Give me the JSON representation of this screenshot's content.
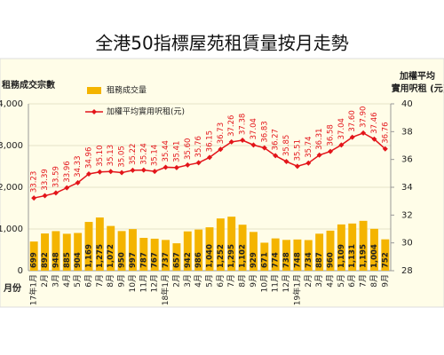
{
  "chart_data": {
    "type": "bar_line",
    "title": "全港50指標屋苑租賃量按月走勢",
    "y_label": "租務成交宗數",
    "y2_label": [
      "加權平均",
      "實用呎租 (元)"
    ],
    "x_label": "月份",
    "categories": [
      "17年1月",
      "2月",
      "3月",
      "4月",
      "5月",
      "6月",
      "7月",
      "8月",
      "9月",
      "10月",
      "11月",
      "12月",
      "18年1月",
      "2月",
      "3月",
      "4月",
      "5月",
      "6月",
      "7月",
      "8月",
      "9月",
      "10月",
      "11月",
      "12月",
      "19年1月",
      "2月",
      "3月",
      "4月",
      "5月",
      "6月",
      "7月",
      "8月",
      "9月"
    ],
    "series": [
      {
        "name": "租務成交量",
        "type": "bar",
        "color": "#f4b400",
        "values": [
          699,
          892,
          948,
          885,
          904,
          1169,
          1275,
          1072,
          950,
          997,
          787,
          767,
          737,
          657,
          942,
          986,
          1040,
          1252,
          1295,
          1102,
          929,
          671,
          774,
          738,
          748,
          734,
          887,
          960,
          1109,
          1131,
          1195,
          1004,
          752
        ],
        "value_labels": [
          "699",
          "892",
          "948",
          "885",
          "904",
          "1,169",
          "1,275",
          "1,072",
          "950",
          "997",
          "787",
          "767",
          "737",
          "657",
          "942",
          "986",
          "1,040",
          "1,252",
          "1,295",
          "1,102",
          "929",
          "671",
          "774",
          "738",
          "748",
          "734",
          "887",
          "960",
          "1,109",
          "1,131",
          "1,195",
          "1,004",
          "752"
        ]
      },
      {
        "name": "加權平均實用呎租(元)",
        "type": "line",
        "axis": "y2",
        "color": "#e3151a",
        "values": [
          33.23,
          33.39,
          33.59,
          33.96,
          34.33,
          34.96,
          35.1,
          35.13,
          35.05,
          35.22,
          35.24,
          35.14,
          35.44,
          35.41,
          35.6,
          35.76,
          36.15,
          36.73,
          37.26,
          37.38,
          37.04,
          36.83,
          36.27,
          35.85,
          35.51,
          35.74,
          36.31,
          36.58,
          37.04,
          37.6,
          37.9,
          37.46,
          36.76
        ],
        "value_labels": [
          "33.23",
          "33.39",
          "33.59",
          "33.96",
          "34.33",
          "34.96",
          "35.10",
          "35.13",
          "35.05",
          "35.22",
          "35.24",
          "35.14",
          "35.44",
          "35.41",
          "35.60",
          "35.76",
          "36.15",
          "36.73",
          "37.26",
          "37.38",
          "37.04",
          "36.83",
          "36.27",
          "35.85",
          "35.51",
          "35.74",
          "36.31",
          "36.58",
          "37.04",
          "37.60",
          "37.90",
          "37.46",
          "36.76"
        ]
      }
    ],
    "ylim": [
      0,
      4000
    ],
    "yticks": [
      0,
      {
        "value": 1000,
        "label": "1,000"
      },
      {
        "value": 2000,
        "label": "2,000"
      },
      {
        "value": 3000,
        "label": "3,000"
      },
      {
        "value": 4000,
        "label": "4,000"
      }
    ],
    "y2lim": [
      28,
      40
    ],
    "y2ticks": [
      28,
      30,
      32,
      34,
      36,
      38,
      40
    ],
    "grid": true
  }
}
